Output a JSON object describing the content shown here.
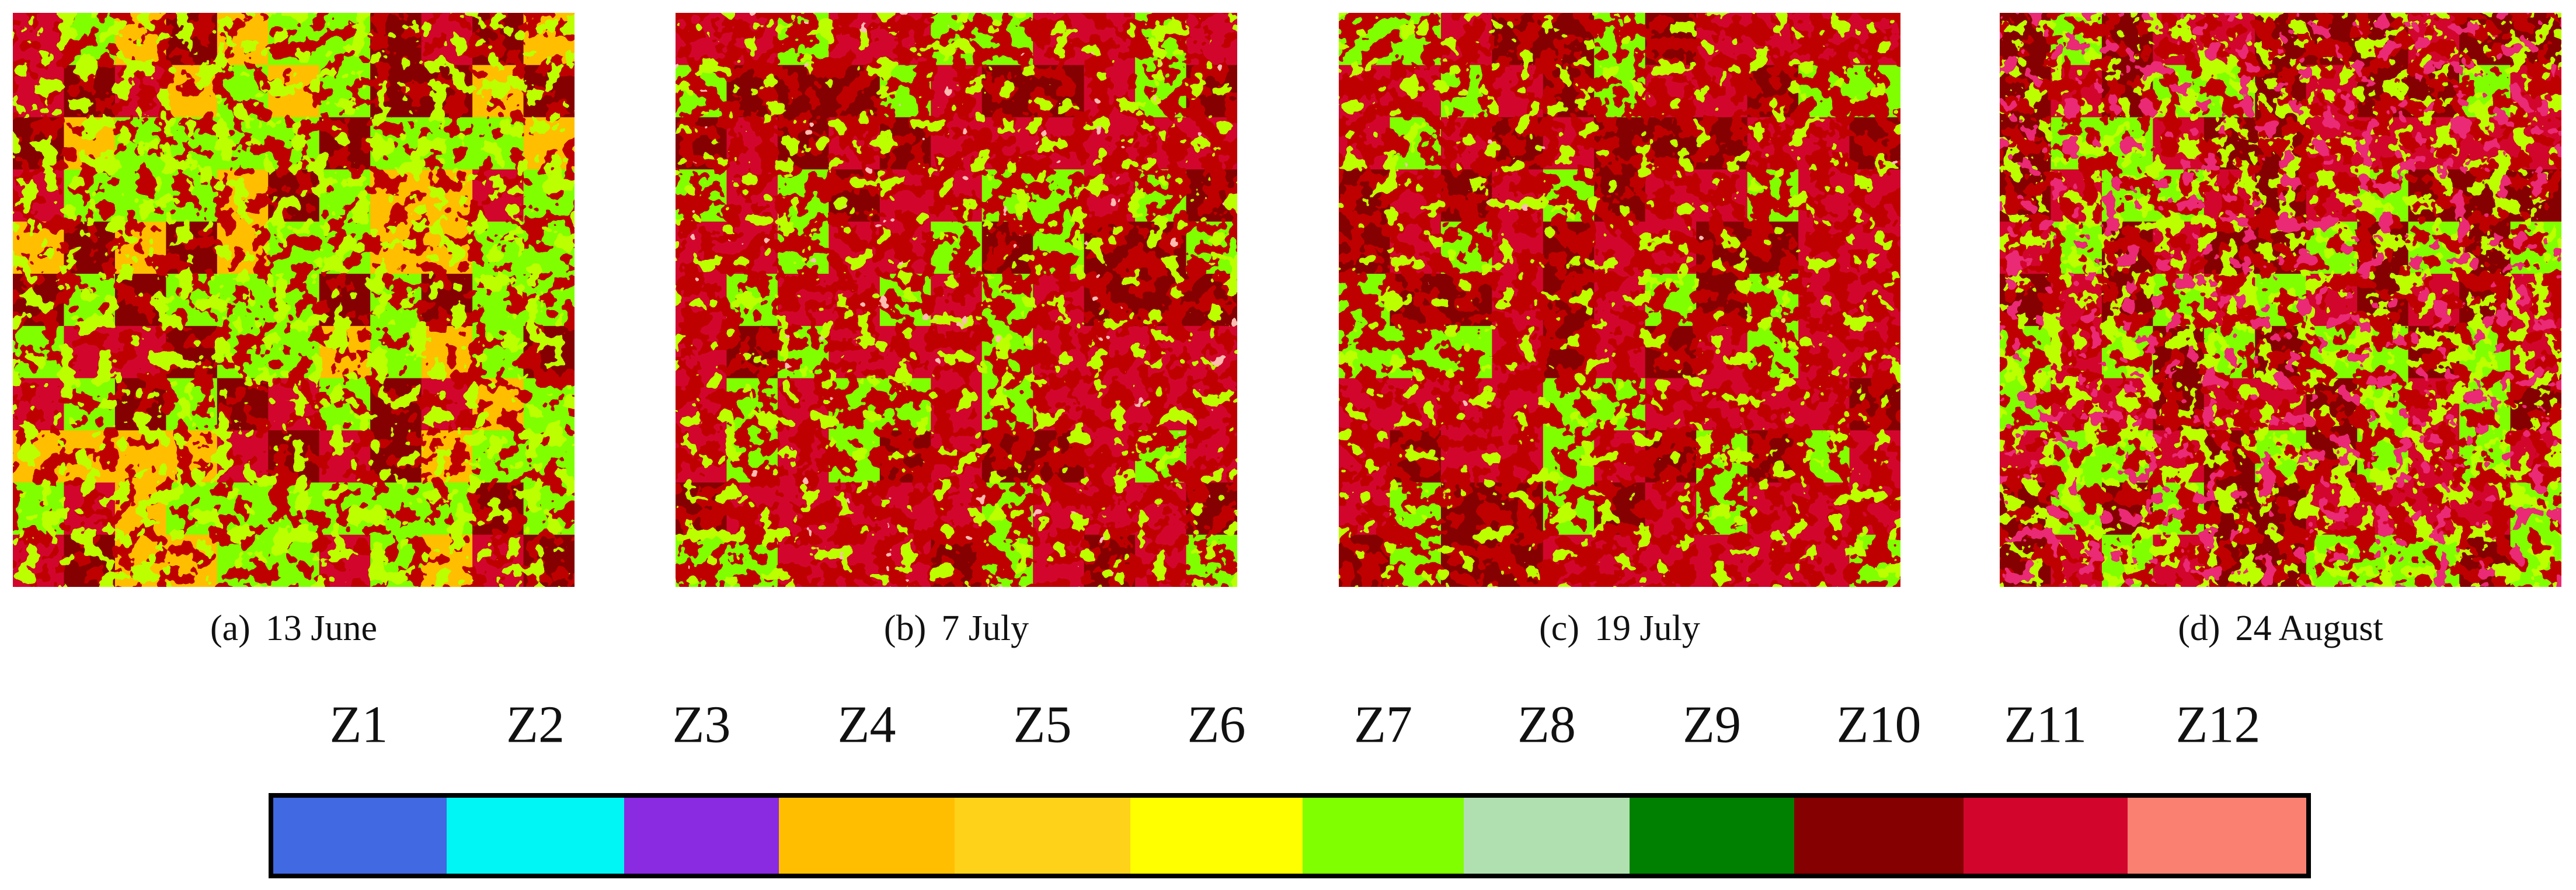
{
  "panels": [
    {
      "label": "(a)",
      "caption": "13 June"
    },
    {
      "label": "(b)",
      "caption": "7 July"
    },
    {
      "label": "(c)",
      "caption": "19 July"
    },
    {
      "label": "(d)",
      "caption": "24 August"
    }
  ],
  "legend": {
    "items": [
      {
        "label": "Z1",
        "color": "#4169e1"
      },
      {
        "label": "Z2",
        "color": "#00f5f5"
      },
      {
        "label": "Z3",
        "color": "#8a2be2"
      },
      {
        "label": "Z4",
        "color": "#ffbf00"
      },
      {
        "label": "Z5",
        "color": "#ffd21a"
      },
      {
        "label": "Z6",
        "color": "#ffff00"
      },
      {
        "label": "Z7",
        "color": "#80ff00"
      },
      {
        "label": "Z8",
        "color": "#b0e0b0"
      },
      {
        "label": "Z9",
        "color": "#008000"
      },
      {
        "label": "Z10",
        "color": "#850000"
      },
      {
        "label": "Z11",
        "color": "#d2062d"
      },
      {
        "label": "Z12",
        "color": "#fa8072"
      }
    ]
  }
}
